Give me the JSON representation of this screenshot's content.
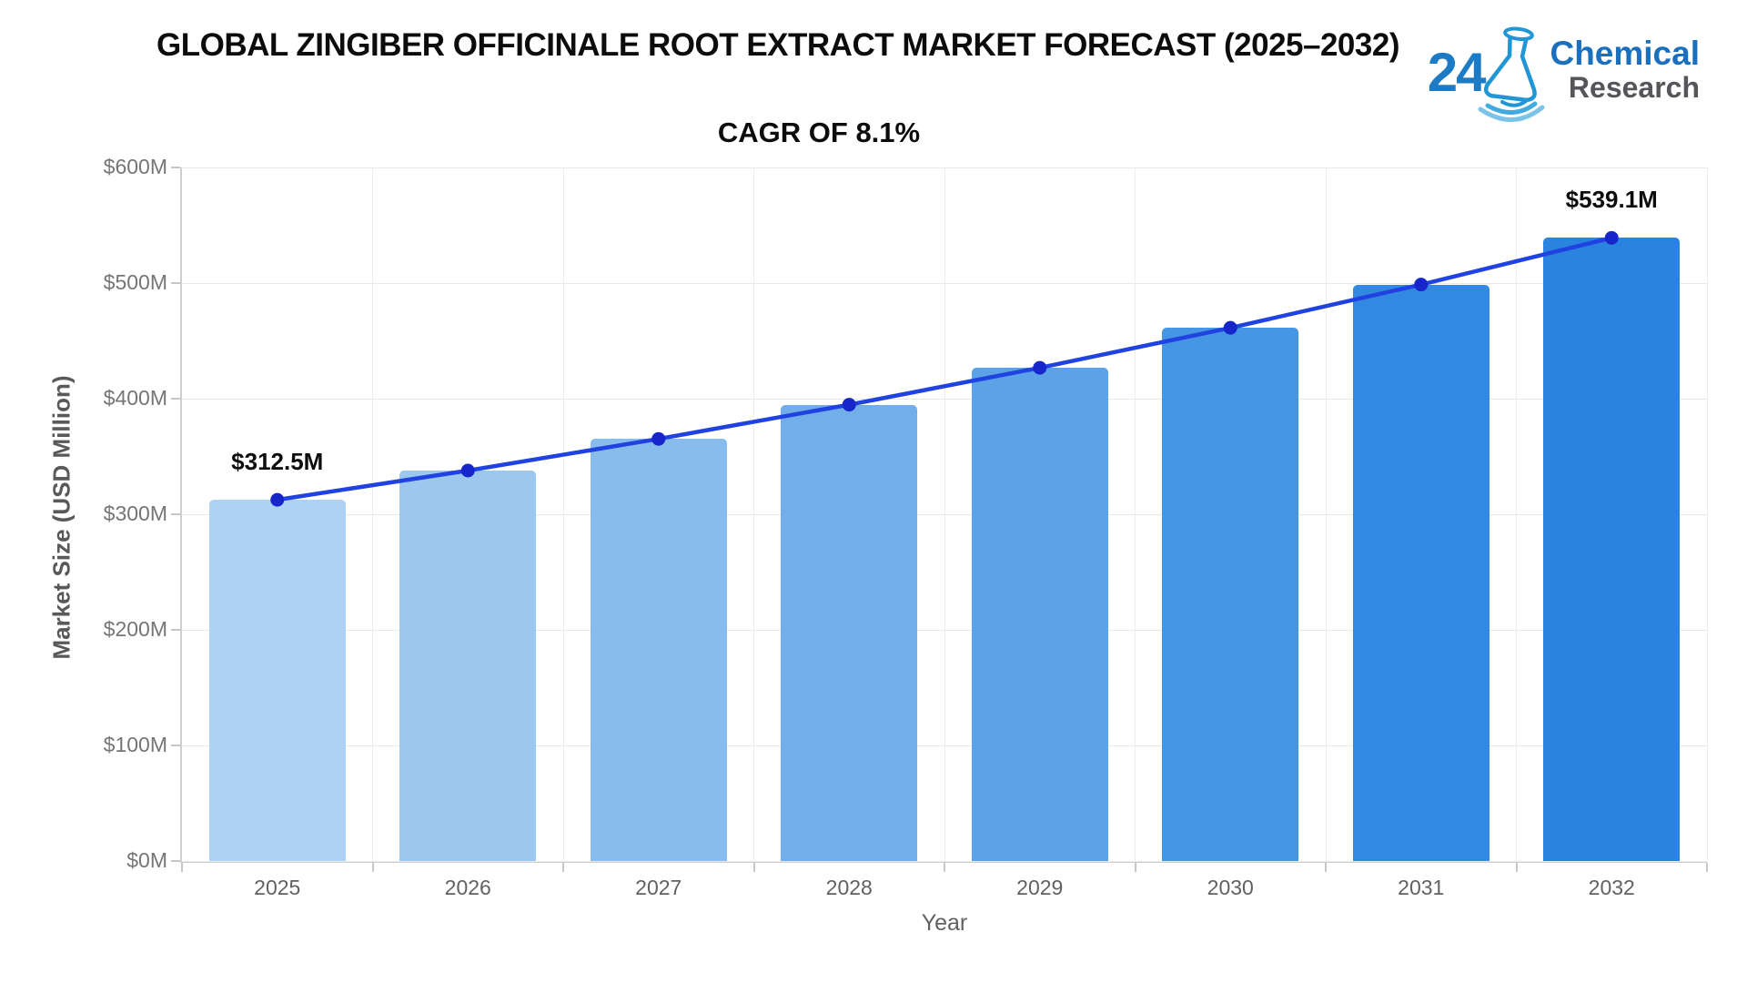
{
  "header": {
    "title": "GLOBAL ZINGIBER OFFICINALE ROOT EXTRACT MARKET FORECAST (2025–2032)",
    "subtitle": "CAGR OF 8.1%"
  },
  "logo": {
    "number": "24",
    "word_top": "Chemical",
    "word_bottom": "Research",
    "colors": {
      "number": "#1d7ac4",
      "word_top": "#1a6fbe",
      "word_bottom": "#55565a",
      "flask": "#2196d4"
    }
  },
  "chart_data": {
    "type": "bar",
    "overlay": "line",
    "title": "CAGR OF 8.1%",
    "categories": [
      "2025",
      "2026",
      "2027",
      "2028",
      "2029",
      "2030",
      "2031",
      "2032"
    ],
    "values": [
      312.5,
      337.8,
      365.2,
      394.8,
      426.7,
      461.3,
      498.7,
      539.1
    ],
    "xlabel": "Year",
    "ylabel": "Market Size (USD Million)",
    "ylim": [
      0,
      600
    ],
    "ytick_labels": [
      "$0M",
      "$100M",
      "$200M",
      "$300M",
      "$400M",
      "$500M",
      "$600M"
    ],
    "grid": true,
    "legend": false,
    "bar_colors": [
      "#aed2f3",
      "#9cc8f0",
      "#88bced",
      "#72afea",
      "#5ba2e7",
      "#4596e4",
      "#3389e1",
      "#2a84df"
    ],
    "line_color": "#2042e0",
    "point_color": "#1626cb",
    "annotations": [
      {
        "category": "2025",
        "label": "$312.5M"
      },
      {
        "category": "2032",
        "label": "$539.1M"
      }
    ]
  }
}
